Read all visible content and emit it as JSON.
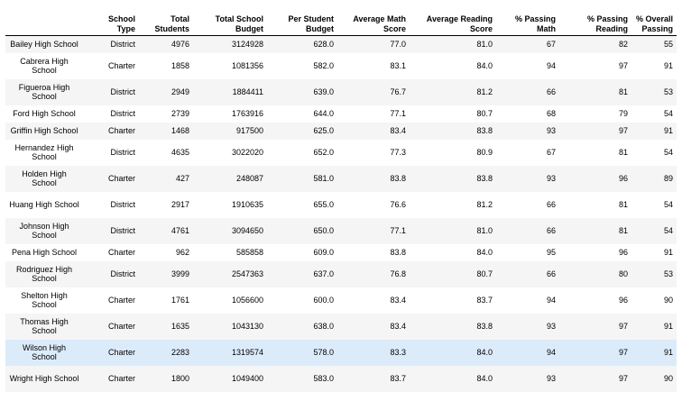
{
  "columns": [
    "",
    "School\nType",
    "Total\nStudents",
    "Total School\nBudget",
    "Per Student\nBudget",
    "Average Math\nScore",
    "Average Reading\nScore",
    "% Passing\nMath",
    "% Passing\nReading",
    "% Overall\nPassing"
  ],
  "rows": [
    {
      "name": "Bailey High School",
      "type": "District",
      "students": "4976",
      "budget": "3124928",
      "per_student": "628.0",
      "math": "77.0",
      "reading": "81.0",
      "pass_math": "67",
      "pass_reading": "82",
      "overall": "55"
    },
    {
      "name": "Cabrera High School",
      "type": "Charter",
      "students": "1858",
      "budget": "1081356",
      "per_student": "582.0",
      "math": "83.1",
      "reading": "84.0",
      "pass_math": "94",
      "pass_reading": "97",
      "overall": "91"
    },
    {
      "name": "Figueroa High School",
      "type": "District",
      "students": "2949",
      "budget": "1884411",
      "per_student": "639.0",
      "math": "76.7",
      "reading": "81.2",
      "pass_math": "66",
      "pass_reading": "81",
      "overall": "53"
    },
    {
      "name": "Ford High School",
      "type": "District",
      "students": "2739",
      "budget": "1763916",
      "per_student": "644.0",
      "math": "77.1",
      "reading": "80.7",
      "pass_math": "68",
      "pass_reading": "79",
      "overall": "54"
    },
    {
      "name": "Griffin High School",
      "type": "Charter",
      "students": "1468",
      "budget": "917500",
      "per_student": "625.0",
      "math": "83.4",
      "reading": "83.8",
      "pass_math": "93",
      "pass_reading": "97",
      "overall": "91"
    },
    {
      "name": "Hernandez High School",
      "type": "District",
      "students": "4635",
      "budget": "3022020",
      "per_student": "652.0",
      "math": "77.3",
      "reading": "80.9",
      "pass_math": "67",
      "pass_reading": "81",
      "overall": "54"
    },
    {
      "name": "Holden High School",
      "type": "Charter",
      "students": "427",
      "budget": "248087",
      "per_student": "581.0",
      "math": "83.8",
      "reading": "83.8",
      "pass_math": "93",
      "pass_reading": "96",
      "overall": "89"
    },
    {
      "name": "Huang High School",
      "type": "District",
      "students": "2917",
      "budget": "1910635",
      "per_student": "655.0",
      "math": "76.6",
      "reading": "81.2",
      "pass_math": "66",
      "pass_reading": "81",
      "overall": "54"
    },
    {
      "name": "Johnson High School",
      "type": "District",
      "students": "4761",
      "budget": "3094650",
      "per_student": "650.0",
      "math": "77.1",
      "reading": "81.0",
      "pass_math": "66",
      "pass_reading": "81",
      "overall": "54"
    },
    {
      "name": "Pena High School",
      "type": "Charter",
      "students": "962",
      "budget": "585858",
      "per_student": "609.0",
      "math": "83.8",
      "reading": "84.0",
      "pass_math": "95",
      "pass_reading": "96",
      "overall": "91"
    },
    {
      "name": "Rodriguez High School",
      "type": "District",
      "students": "3999",
      "budget": "2547363",
      "per_student": "637.0",
      "math": "76.8",
      "reading": "80.7",
      "pass_math": "66",
      "pass_reading": "80",
      "overall": "53"
    },
    {
      "name": "Shelton High School",
      "type": "Charter",
      "students": "1761",
      "budget": "1056600",
      "per_student": "600.0",
      "math": "83.4",
      "reading": "83.7",
      "pass_math": "94",
      "pass_reading": "96",
      "overall": "90"
    },
    {
      "name": "Thomas High School",
      "type": "Charter",
      "students": "1635",
      "budget": "1043130",
      "per_student": "638.0",
      "math": "83.4",
      "reading": "83.8",
      "pass_math": "93",
      "pass_reading": "97",
      "overall": "91"
    },
    {
      "name": "Wilson High School",
      "type": "Charter",
      "students": "2283",
      "budget": "1319574",
      "per_student": "578.0",
      "math": "83.3",
      "reading": "84.0",
      "pass_math": "94",
      "pass_reading": "97",
      "overall": "91"
    },
    {
      "name": "Wright High School",
      "type": "Charter",
      "students": "1800",
      "budget": "1049400",
      "per_student": "583.0",
      "math": "83.7",
      "reading": "84.0",
      "pass_math": "93",
      "pass_reading": "97",
      "overall": "90"
    }
  ]
}
